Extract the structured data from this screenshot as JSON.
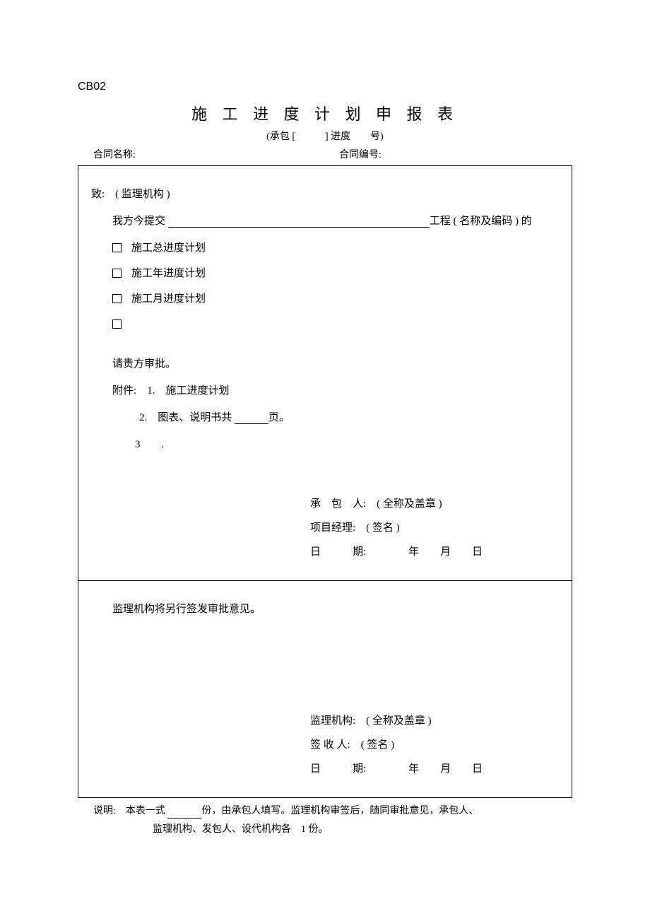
{
  "form_code": "CB02",
  "title": "施 工 进 度 计 划 申 报 表",
  "subtitle": "(承包 [　　　] 进度　　号)",
  "header": {
    "contract_name_label": "合同名称:",
    "contract_no_label": "合同编号:"
  },
  "upper": {
    "to_line": "致:　( 监理机构 )",
    "submit_prefix": "我方今提交 ",
    "submit_suffix": "工程 ( 名称及编码 ) 的",
    "checkboxes": [
      "施工总进度计划",
      "施工年进度计划",
      "施工月进度计划",
      ""
    ],
    "approve_line": "请贵方审批。",
    "attach_label": "附件:",
    "attach_1": "1.　施工进度计划",
    "attach_2a": "2.　图表、说明书共 ",
    "attach_2b": "页。",
    "attach_3": "3　　.",
    "sig_contractor": "承　包　人:　( 全称及盖章 )",
    "sig_pm": "项目经理:　( 签名 )",
    "sig_date": "日　　　期:　　　　年　　月　　日"
  },
  "lower": {
    "note_line": "监理机构将另行签发审批意见。",
    "sig_org": "监理机构:　( 全称及盖章 )",
    "sig_receiver": "签 收 人:　( 签名 )",
    "sig_date": "日　　　期:　　　　年　　月　　日"
  },
  "footer": {
    "line1a": "说明:　本表一式 ",
    "line1b": "份，由承包人填写。监理机构审签后，随同审批意见，承包人、",
    "line2": "监理机构、发包人、设代机构各　1 份。"
  }
}
